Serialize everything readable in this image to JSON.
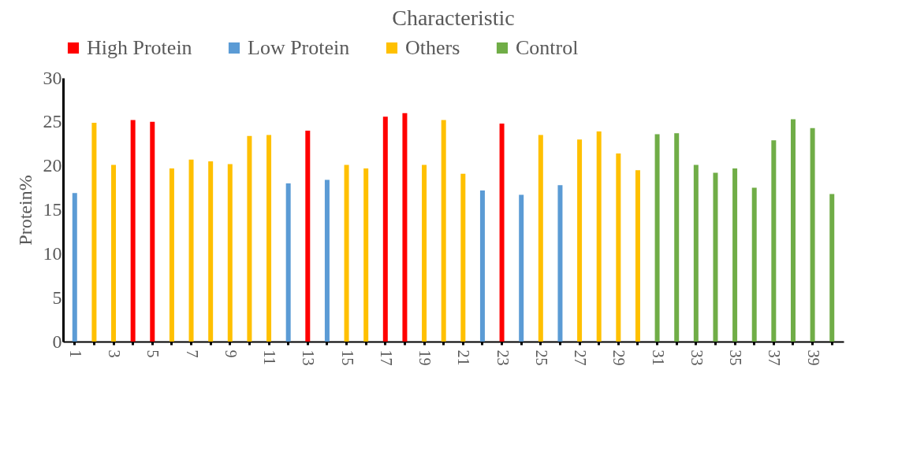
{
  "chart_data": {
    "type": "bar",
    "title": "Characteristic",
    "ylabel": "Protein%",
    "categories": [
      "1",
      null,
      "3",
      null,
      "5",
      null,
      "7",
      null,
      "9",
      null,
      "11",
      null,
      "13",
      null,
      "15",
      null,
      "17",
      null,
      "19",
      null,
      "21",
      null,
      "23",
      null,
      "25",
      null,
      "27",
      null,
      "29",
      null,
      "31",
      null,
      "33",
      null,
      "35",
      null,
      "37",
      null,
      "39",
      null
    ],
    "series": [
      {
        "name": "High Protein",
        "color": "#ff0000",
        "values": [
          null,
          null,
          null,
          25.2,
          25.0,
          null,
          null,
          null,
          null,
          null,
          null,
          null,
          24.0,
          null,
          null,
          null,
          25.6,
          26.0,
          null,
          null,
          null,
          null,
          24.8,
          null,
          null,
          null,
          null,
          null,
          null,
          null,
          null,
          null,
          null,
          null,
          null,
          null,
          null,
          null,
          null,
          null
        ]
      },
      {
        "name": "Low Protein",
        "color": "#5b9bd5",
        "values": [
          16.9,
          null,
          null,
          null,
          null,
          null,
          null,
          null,
          null,
          null,
          null,
          18.0,
          null,
          18.4,
          null,
          null,
          null,
          null,
          null,
          null,
          null,
          17.2,
          null,
          16.7,
          null,
          17.8,
          null,
          null,
          null,
          null,
          null,
          null,
          null,
          null,
          null,
          null,
          null,
          null,
          null,
          null
        ]
      },
      {
        "name": "Others",
        "color": "#ffc000",
        "values": [
          null,
          24.9,
          20.1,
          null,
          null,
          19.7,
          20.7,
          20.5,
          20.2,
          23.4,
          23.5,
          null,
          null,
          null,
          20.1,
          19.7,
          null,
          null,
          20.1,
          25.2,
          19.1,
          null,
          null,
          null,
          23.5,
          null,
          23.0,
          23.9,
          21.4,
          19.5,
          null,
          null,
          null,
          null,
          null,
          null,
          null,
          null,
          null,
          null
        ]
      },
      {
        "name": "Control",
        "color": "#70ad47",
        "values": [
          null,
          null,
          null,
          null,
          null,
          null,
          null,
          null,
          null,
          null,
          null,
          null,
          null,
          null,
          null,
          null,
          null,
          null,
          null,
          null,
          null,
          null,
          null,
          null,
          null,
          null,
          null,
          null,
          null,
          null,
          23.6,
          23.7,
          20.1,
          19.2,
          19.7,
          17.5,
          22.9,
          25.3,
          24.3,
          16.8
        ]
      }
    ],
    "ylim": [
      0,
      30
    ],
    "yticks": [
      0,
      5,
      10,
      15,
      20,
      25,
      30
    ],
    "grid": false,
    "legend": "top"
  }
}
